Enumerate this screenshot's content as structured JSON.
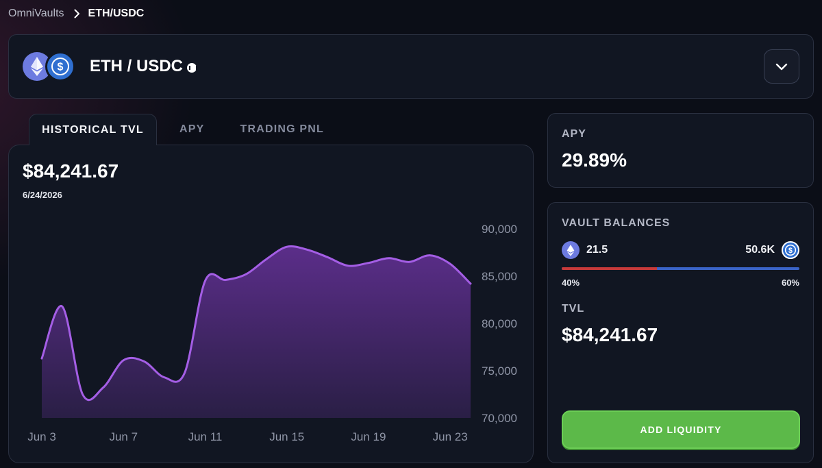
{
  "breadcrumb": {
    "root": "OmniVaults",
    "current": "ETH/USDC"
  },
  "header": {
    "pair_title": "ETH / USDC",
    "token_a_icon": "eth-icon",
    "token_b_icon": "usdc-icon"
  },
  "tabs": [
    {
      "label": "HISTORICAL TVL",
      "active": true
    },
    {
      "label": "APY",
      "active": false
    },
    {
      "label": "TRADING PNL",
      "active": false
    }
  ],
  "chart": {
    "current_value": "$84,241.67",
    "current_date": "6/24/2026"
  },
  "chart_data": {
    "type": "area",
    "title": "",
    "xlabel": "",
    "ylabel": "",
    "x_tick_labels": [
      "Jun 3",
      "Jun 7",
      "Jun 11",
      "Jun 15",
      "Jun 19",
      "Jun 23"
    ],
    "y_tick_labels": [
      "90,000",
      "85,000",
      "80,000",
      "75,000",
      "70,000"
    ],
    "ylim": [
      70000,
      90000
    ],
    "y_axis_position": "right",
    "grid": false,
    "color": "#a45ee5",
    "series": [
      {
        "x": [
          "2026-06-03",
          "2026-06-04",
          "2026-06-05",
          "2026-06-06",
          "2026-06-07",
          "2026-06-08",
          "2026-06-09",
          "2026-06-10",
          "2026-06-11",
          "2026-06-12",
          "2026-06-13",
          "2026-06-14",
          "2026-06-15",
          "2026-06-16",
          "2026-06-17",
          "2026-06-18",
          "2026-06-19",
          "2026-06-20",
          "2026-06-21",
          "2026-06-22",
          "2026-06-23",
          "2026-06-24"
        ],
        "y": [
          76300,
          81800,
          72500,
          73200,
          76100,
          76000,
          74300,
          74800,
          84500,
          84600,
          85200,
          86800,
          88100,
          87800,
          87000,
          86100,
          86400,
          86900,
          86500,
          87200,
          86300,
          84200
        ]
      }
    ]
  },
  "apy_card": {
    "label": "APY",
    "value": "29.89%"
  },
  "vault": {
    "label": "VAULT BALANCES",
    "token_a_amount": "21.5",
    "token_b_amount": "50.6K",
    "token_a_pct": "40%",
    "token_b_pct": "60%",
    "token_a_share": 0.4,
    "token_a_bar_color": "#c73a3a",
    "token_b_bar_color": "#3a64c8",
    "tvl_label": "TVL",
    "tvl_value": "$84,241.67",
    "add_button_label": "ADD LIQUIDITY"
  }
}
